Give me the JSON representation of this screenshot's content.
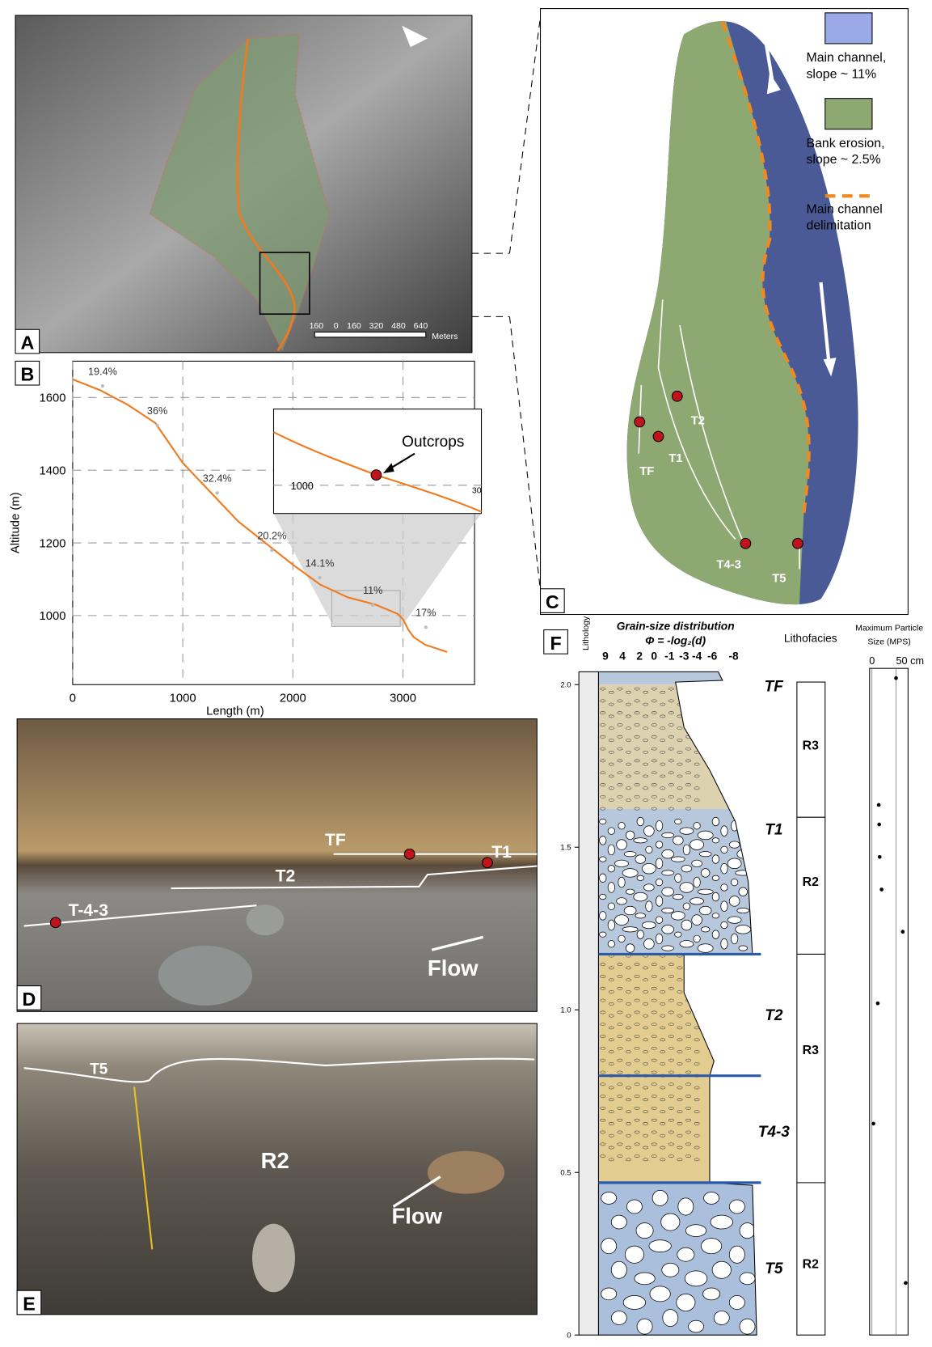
{
  "panel_labels": [
    "A",
    "B",
    "C",
    "D",
    "E",
    "F"
  ],
  "panel_a": {
    "scale_labels": [
      "160",
      "0",
      "160",
      "320",
      "480",
      "640"
    ],
    "unit": "Meters"
  },
  "chart_data": [
    {
      "type": "line",
      "x_label": "Length (m)",
      "y_label": "Altitude (m)",
      "x": [
        0,
        250,
        500,
        750,
        1000,
        1250,
        1500,
        1750,
        2000,
        2250,
        2500,
        2750,
        2950,
        3000,
        3050,
        3100,
        3200,
        3400
      ],
      "values": [
        1650,
        1620,
        1580,
        1530,
        1420,
        1340,
        1260,
        1200,
        1140,
        1085,
        1050,
        1030,
        1005,
        990,
        960,
        940,
        920,
        900
      ],
      "color": "#f07a1e",
      "xlim": [
        0,
        3650
      ],
      "ylim": [
        810,
        1700
      ],
      "xticks": [
        0,
        1000,
        2000,
        3000
      ],
      "yticks": [
        1000,
        1200,
        1400,
        1600
      ],
      "grid": true,
      "annotations": [
        "19.4%",
        "36%",
        "32.4%",
        "20.2%",
        "14.1%",
        "11%",
        "17%"
      ],
      "inset": {
        "label": "Outcrops",
        "y_tick": "1000",
        "x_tick": "30"
      }
    },
    {
      "type": "scatter",
      "title_lines": [
        "Maximum Particle",
        "Size (MPS)"
      ],
      "x": [
        50,
        14,
        15,
        16,
        20,
        64,
        12,
        3,
        70
      ],
      "values": [
        2.02,
        1.63,
        1.57,
        1.47,
        1.37,
        1.24,
        1.02,
        0.65,
        0.16
      ],
      "xlim": [
        -5,
        75
      ],
      "xticks": [
        0,
        {
          "value": 50,
          "label": "50 cm"
        }
      ],
      "ylim": [
        0,
        2.05
      ],
      "yticks": [
        0,
        0.5,
        {
          "value": 1,
          "label": "1.0"
        },
        1.5,
        {
          "value": 2,
          "label": "2.0"
        }
      ]
    }
  ],
  "panel_c": {
    "legend": [
      {
        "lines": [
          "Main channel,",
          "slope ~ 11%"
        ],
        "color": "#9aa9e8"
      },
      {
        "lines": [
          "Bank erosion,",
          "slope ~ 2.5%"
        ],
        "color": "#8ea872"
      },
      {
        "lines": [
          "Main channel",
          "delimitation"
        ],
        "color": "#f08a1e"
      }
    ],
    "terraces": [
      "TF",
      "T1",
      "T2",
      "T4-3",
      "T5"
    ]
  },
  "panel_d": {
    "labels": [
      "TF",
      "T1",
      "T2",
      "T-4-3",
      "Flow"
    ]
  },
  "panel_e": {
    "labels": [
      "T5",
      "R2",
      "Flow"
    ]
  },
  "panel_f": {
    "lithology": "Lithology",
    "grain_size_title": "Grain-size distribution",
    "phi": "Φ = -log₂(d)",
    "phi_ticks": [
      "9",
      "4",
      "2",
      "0",
      "-1",
      "-3",
      "-4",
      "-6",
      "-8"
    ],
    "lithofacies_title": "Lithofacies",
    "units": [
      "TF",
      "T1",
      "T2",
      "T4-3",
      "T5"
    ],
    "lithofacies": [
      "R3",
      "R2",
      "R3",
      "R2"
    ]
  }
}
